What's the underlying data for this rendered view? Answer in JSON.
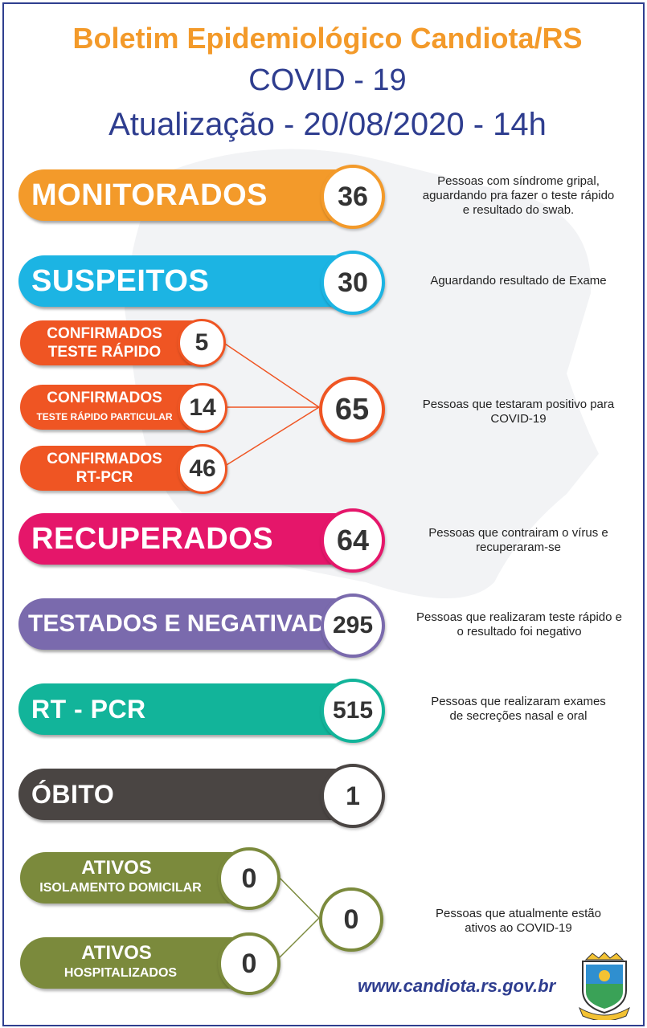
{
  "header": {
    "title": "Boletim Epidemiológico Candiota/RS",
    "subtitle": "COVID - 19",
    "update": "Atualização - 20/08/2020 - 14h"
  },
  "rows": {
    "monitorados": {
      "label": "MONITORADOS",
      "value": "36",
      "color": "#f39a2a",
      "desc1": "Pessoas com síndrome gripal,",
      "desc2": "aguardando pra fazer o teste rápido",
      "desc3": "e resultado do swab."
    },
    "suspeitos": {
      "label": "SUSPEITOS",
      "value": "30",
      "color": "#1cb4e3",
      "desc1": "Aguardando resultado de Exame"
    },
    "confirmados_teste_rapido": {
      "line1": "CONFIRMADOS",
      "line2": "TESTE RÁPIDO",
      "value": "5",
      "color": "#ef5523"
    },
    "confirmados_particular": {
      "line1": "CONFIRMADOS",
      "line2": "TESTE RÁPIDO PARTICULAR",
      "value": "14",
      "color": "#ef5523"
    },
    "confirmados_rtpcr": {
      "line1": "CONFIRMADOS",
      "line2": "RT-PCR",
      "value": "46",
      "color": "#ef5523"
    },
    "confirmados_total": {
      "value": "65",
      "desc1": "Pessoas que testaram positivo para",
      "desc2": "COVID-19"
    },
    "recuperados": {
      "label": "RECUPERADOS",
      "value": "64",
      "color": "#e5166a",
      "desc1": "Pessoas que contrairam o vírus e",
      "desc2": "recuperaram-se"
    },
    "testados": {
      "label": "TESTADOS E NEGATIVADOS",
      "value": "295",
      "color": "#7a6aad",
      "desc1": "Pessoas que realizaram teste rápido e",
      "desc2": "o resultado foi negativo"
    },
    "rtpcr": {
      "label": "RT - PCR",
      "value": "515",
      "color": "#12b49a",
      "desc1": "Pessoas que realizaram exames",
      "desc2": "de secreções nasal e oral"
    },
    "obito": {
      "label": "ÓBITO",
      "value": "1",
      "color": "#4a4543"
    },
    "ativos_domicilio": {
      "line1": "ATIVOS",
      "line2": "ISOLAMENTO DOMICILAR",
      "value": "0",
      "color": "#7b8a3c"
    },
    "ativos_hospital": {
      "line1": "ATIVOS",
      "line2": "HOSPITALIZADOS",
      "value": "0",
      "color": "#7b8a3c"
    },
    "ativos_total": {
      "value": "0",
      "desc1": "Pessoas que atualmente estão",
      "desc2": "ativos ao COVID-19"
    }
  },
  "footer": {
    "website": "www.candiota.rs.gov.br"
  },
  "icons": {
    "crest": "municipal-coat-of-arms-icon"
  }
}
